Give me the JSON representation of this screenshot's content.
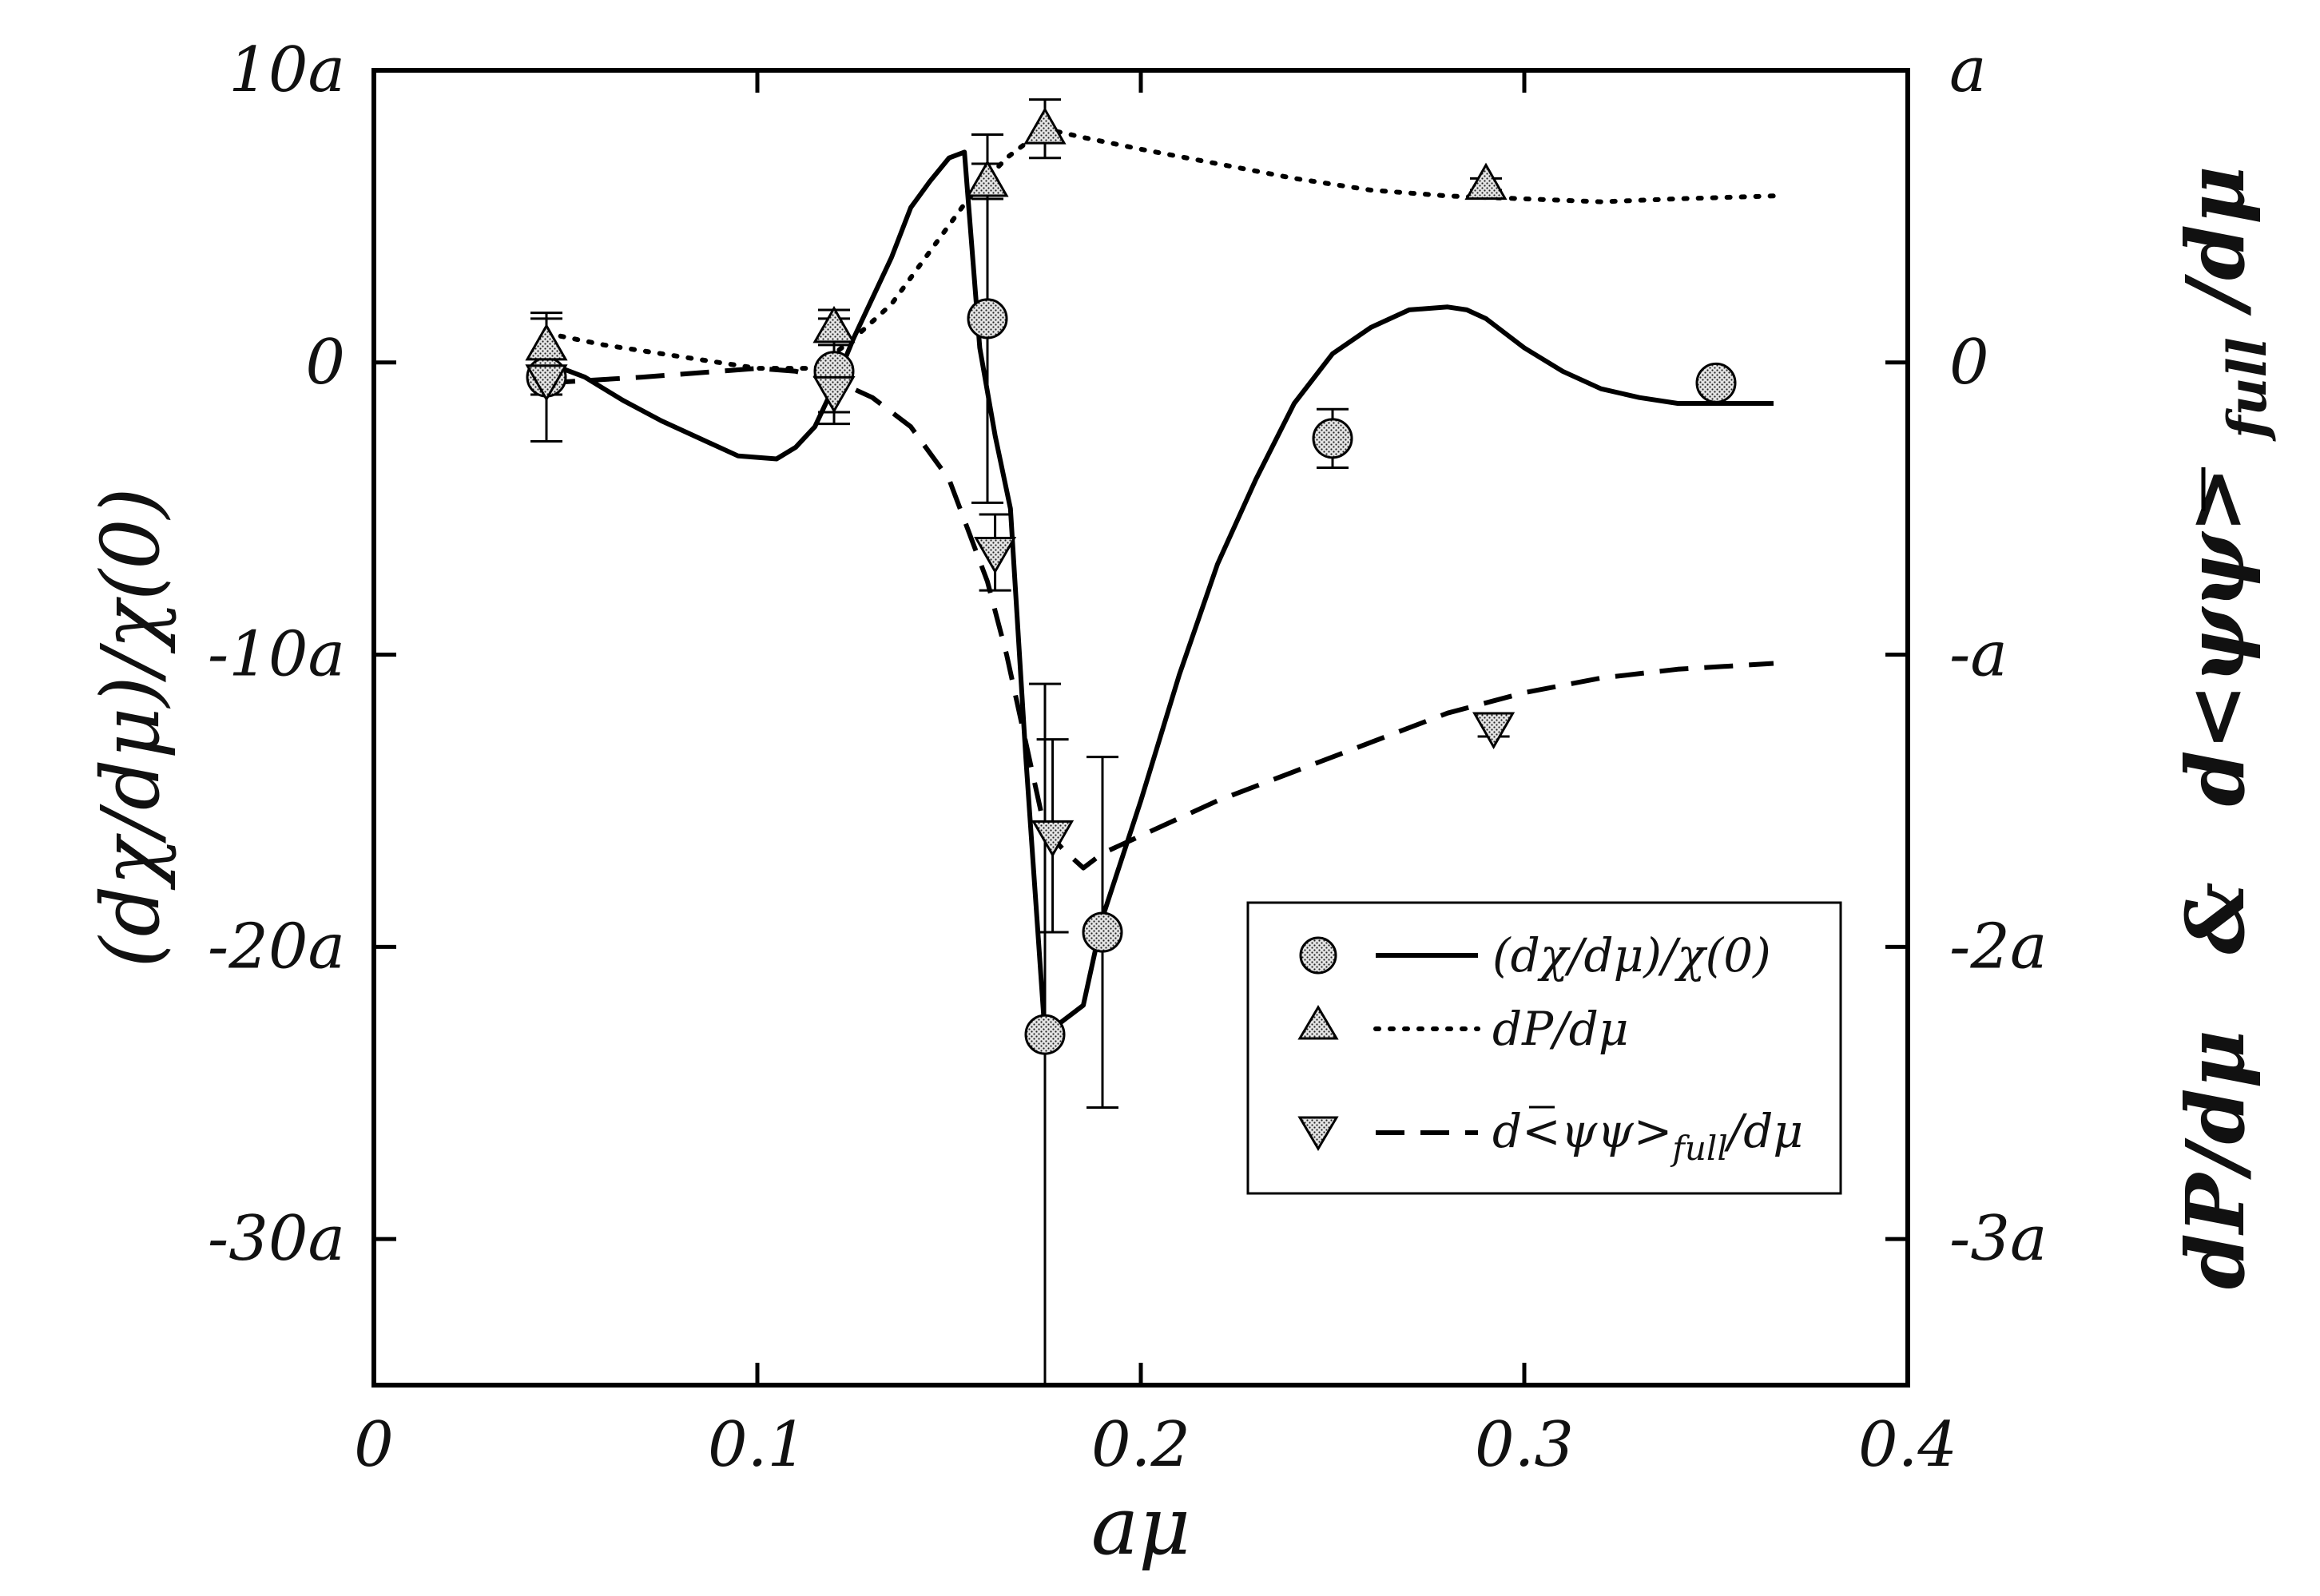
{
  "chart_data": {
    "type": "line",
    "xlabel": "aμ",
    "ylabel_left": "(dχ/dμ)/χ(0)",
    "ylabel_right_parts": [
      "dP/dμ",
      "&",
      "d<ψψ>",
      "full",
      "/dμ"
    ],
    "xlim": [
      0,
      0.4
    ],
    "ylim_left": [
      -35,
      10
    ],
    "ylim_right": [
      -3.5,
      1
    ],
    "x_ticks": [
      {
        "value": 0,
        "label": "0"
      },
      {
        "value": 0.1,
        "label": "0.1"
      },
      {
        "value": 0.2,
        "label": "0.2"
      },
      {
        "value": 0.3,
        "label": "0.3"
      },
      {
        "value": 0.4,
        "label": "0.4"
      }
    ],
    "y_ticks_left": [
      {
        "value": 10,
        "label": "10a"
      },
      {
        "value": 0,
        "label": "0"
      },
      {
        "value": -10,
        "label": "-10a"
      },
      {
        "value": -20,
        "label": "-20a"
      },
      {
        "value": -30,
        "label": "-30a"
      }
    ],
    "y_ticks_right": [
      {
        "value": 1,
        "label": "a"
      },
      {
        "value": 0,
        "label": "0"
      },
      {
        "value": -1,
        "label": "-a"
      },
      {
        "value": -2,
        "label": "-2a"
      },
      {
        "value": -3,
        "label": "-3a"
      }
    ],
    "legend": {
      "placement": "lower-right",
      "entries": [
        {
          "marker": "circle",
          "line": "solid",
          "label": "(dχ/dμ)/χ(0)"
        },
        {
          "marker": "triangle-up",
          "line": "dotted",
          "label": "dP/dμ"
        },
        {
          "marker": "triangle-down",
          "line": "dashed",
          "label": "d<ψψ>",
          "sub": "full",
          "suffix": "/dμ"
        }
      ]
    },
    "series": [
      {
        "name": "(dχ/dμ)/χ(0)",
        "axis": "left",
        "marker": "circle",
        "points": [
          {
            "x": 0.045,
            "y": -0.5,
            "err": 2.2
          },
          {
            "x": 0.12,
            "y": -0.3,
            "err": 1.8
          },
          {
            "x": 0.16,
            "y": 1.5,
            "err": 6.3
          },
          {
            "x": 0.175,
            "y": -23.0,
            "err": 12.0
          },
          {
            "x": 0.19,
            "y": -19.5,
            "err": 6.0
          },
          {
            "x": 0.25,
            "y": -2.6,
            "err": 1.0
          },
          {
            "x": 0.35,
            "y": -0.7,
            "err": 0.4
          }
        ],
        "curve": {
          "style": "solid",
          "x": [
            0.045,
            0.055,
            0.065,
            0.075,
            0.085,
            0.095,
            0.105,
            0.11,
            0.115,
            0.12,
            0.125,
            0.13,
            0.135,
            0.14,
            0.145,
            0.15,
            0.154,
            0.158,
            0.162,
            0.166,
            0.17,
            0.175,
            0.18,
            0.185,
            0.19,
            0.2,
            0.21,
            0.22,
            0.23,
            0.24,
            0.25,
            0.26,
            0.27,
            0.28,
            0.285,
            0.29,
            0.3,
            0.31,
            0.32,
            0.33,
            0.34,
            0.35,
            0.357,
            0.365
          ],
          "y": [
            0.0,
            -0.5,
            -1.3,
            -2.0,
            -2.6,
            -3.2,
            -3.3,
            -2.9,
            -2.2,
            -0.8,
            0.8,
            2.2,
            3.6,
            5.3,
            6.2,
            7.0,
            7.2,
            0.5,
            -2.5,
            -5.0,
            -13.5,
            -23.0,
            -22.5,
            -22.0,
            -19.0,
            -15.0,
            -10.7,
            -6.9,
            -4.0,
            -1.4,
            0.3,
            1.2,
            1.8,
            1.9,
            1.8,
            1.5,
            0.5,
            -0.3,
            -0.9,
            -1.2,
            -1.4,
            -1.4,
            -1.4,
            -1.4
          ]
        }
      },
      {
        "name": "dP/dμ",
        "axis": "right",
        "marker": "triangle-up",
        "points": [
          {
            "x": 0.045,
            "y": 0.06,
            "err": 0.09
          },
          {
            "x": 0.12,
            "y": 0.12,
            "err": 0.06
          },
          {
            "x": 0.16,
            "y": 0.62,
            "err": 0.06
          },
          {
            "x": 0.175,
            "y": 0.8,
            "err": 0.1
          },
          {
            "x": 0.29,
            "y": 0.61,
            "err": 0.02
          }
        ],
        "curve": {
          "style": "dotted",
          "x": [
            0.045,
            0.06,
            0.08,
            0.1,
            0.115,
            0.125,
            0.135,
            0.145,
            0.155,
            0.165,
            0.175,
            0.185,
            0.2,
            0.22,
            0.24,
            0.26,
            0.28,
            0.3,
            0.32,
            0.34,
            0.365
          ],
          "y": [
            0.1,
            0.06,
            0.02,
            -0.02,
            -0.02,
            0.08,
            0.2,
            0.38,
            0.56,
            0.7,
            0.8,
            0.77,
            0.73,
            0.68,
            0.63,
            0.59,
            0.57,
            0.56,
            0.55,
            0.56,
            0.57
          ]
        }
      },
      {
        "name": "d<ψψ>full/dμ",
        "axis": "right",
        "marker": "triangle-down",
        "points": [
          {
            "x": 0.045,
            "y": -0.06,
            "err": 0.05
          },
          {
            "x": 0.12,
            "y": -0.1,
            "err": 0.07
          },
          {
            "x": 0.162,
            "y": -0.65,
            "err": 0.13
          },
          {
            "x": 0.177,
            "y": -1.62,
            "err": 0.33
          },
          {
            "x": 0.292,
            "y": -1.25,
            "err": 0.03
          }
        ],
        "curve": {
          "style": "dashed",
          "x": [
            0.045,
            0.07,
            0.09,
            0.1,
            0.11,
            0.12,
            0.13,
            0.14,
            0.15,
            0.16,
            0.165,
            0.17,
            0.175,
            0.18,
            0.185,
            0.19,
            0.2,
            0.22,
            0.24,
            0.26,
            0.28,
            0.3,
            0.32,
            0.34,
            0.365
          ],
          "y": [
            -0.07,
            -0.05,
            -0.03,
            -0.02,
            -0.03,
            -0.06,
            -0.12,
            -0.22,
            -0.4,
            -0.75,
            -1.0,
            -1.3,
            -1.6,
            -1.67,
            -1.73,
            -1.68,
            -1.62,
            -1.5,
            -1.4,
            -1.3,
            -1.2,
            -1.13,
            -1.08,
            -1.05,
            -1.03
          ]
        }
      }
    ]
  }
}
